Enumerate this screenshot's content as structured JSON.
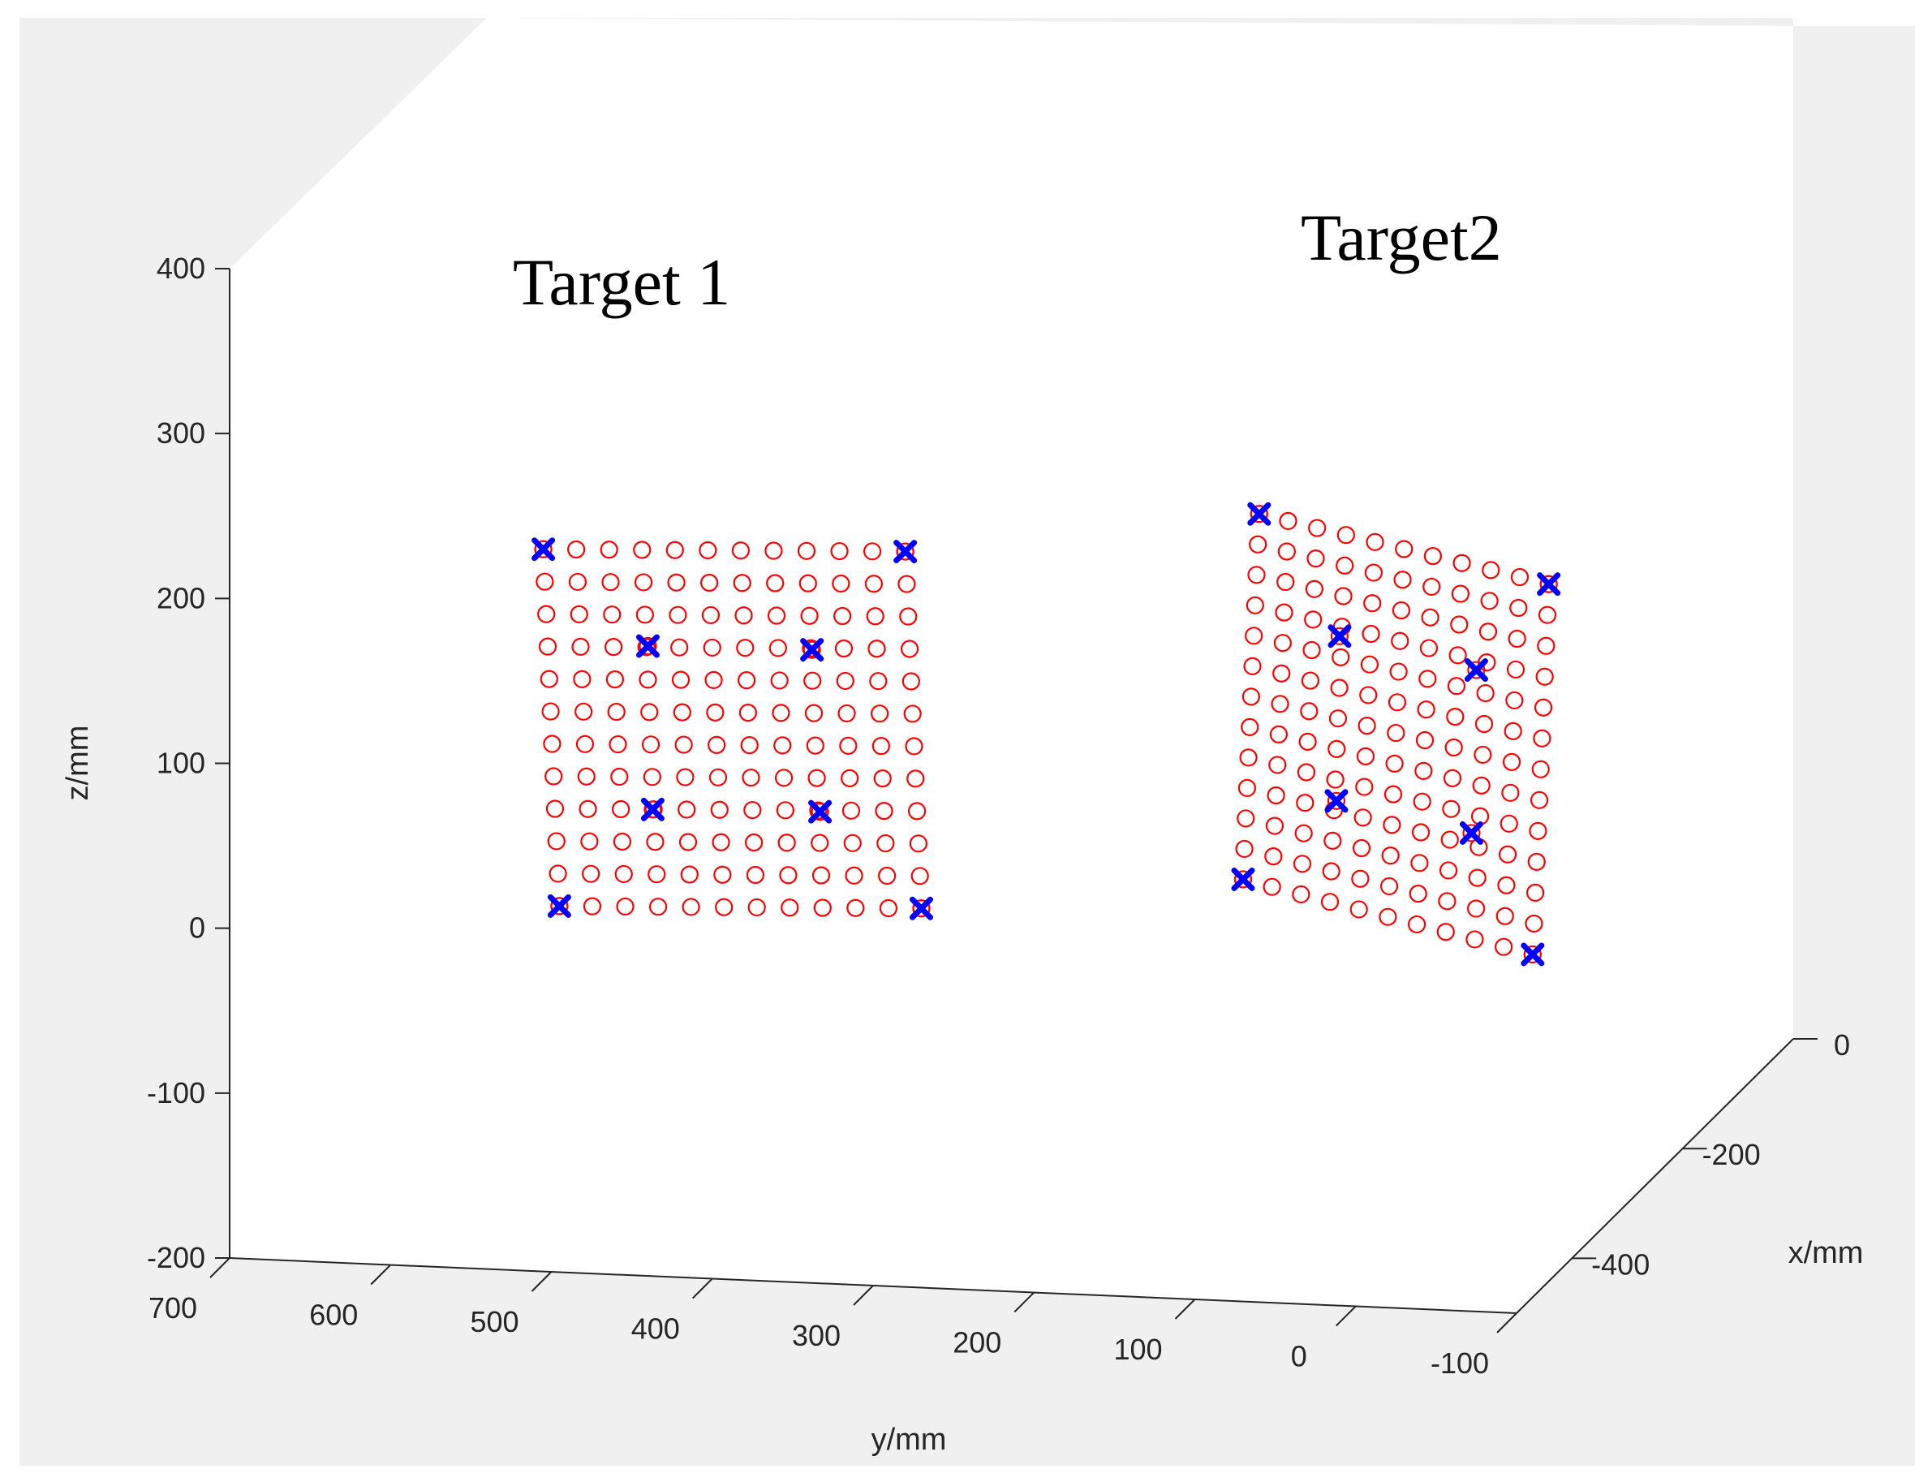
{
  "chart_data": {
    "type": "scatter",
    "view": "3d",
    "xlabel": "x/mm",
    "ylabel": "y/mm",
    "zlabel": "z/mm",
    "xlim": [
      -500,
      0
    ],
    "ylim": [
      -100,
      700
    ],
    "zlim": [
      -200,
      400
    ],
    "x_ticks": [
      "0",
      "-200",
      "-400"
    ],
    "y_ticks": [
      "700",
      "600",
      "500",
      "400",
      "300",
      "200",
      "100",
      "0",
      "-100"
    ],
    "z_ticks": [
      "400",
      "300",
      "200",
      "100",
      "0",
      "-100",
      "-200"
    ],
    "grid": false,
    "colors": {
      "grid_point": "#ff0000",
      "marker": "#0000ff",
      "pane_back": "#f0f0f0"
    },
    "annotations": [
      "Target 1",
      "Target2"
    ],
    "targets": [
      {
        "label": "Target 1",
        "rows": 12,
        "cols": 12,
        "corners_yz": {
          "top_left": [
            505,
            238
          ],
          "top_right": [
            280,
            246
          ],
          "bottom_left": [
            495,
            22
          ],
          "bottom_right": [
            270,
            30
          ]
        },
        "markers_yz": [
          [
            505,
            238
          ],
          [
            280,
            246
          ],
          [
            495,
            22
          ],
          [
            270,
            30
          ],
          [
            440,
            182
          ],
          [
            338,
            184
          ],
          [
            437,
            83
          ],
          [
            333,
            86
          ]
        ]
      },
      {
        "label": "Target2",
        "rows": 13,
        "cols": 11,
        "corners_yz": {
          "top_left": [
            60,
            278
          ],
          "top_right": [
            -120,
            243
          ],
          "bottom_left": [
            70,
            56
          ],
          "bottom_right": [
            -110,
            18
          ]
        },
        "markers_yz": [
          [
            60,
            278
          ],
          [
            -120,
            243
          ],
          [
            70,
            56
          ],
          [
            -110,
            18
          ],
          [
            10,
            206
          ],
          [
            -75,
            189
          ],
          [
            12,
            106
          ],
          [
            -72,
            90
          ]
        ]
      }
    ]
  }
}
